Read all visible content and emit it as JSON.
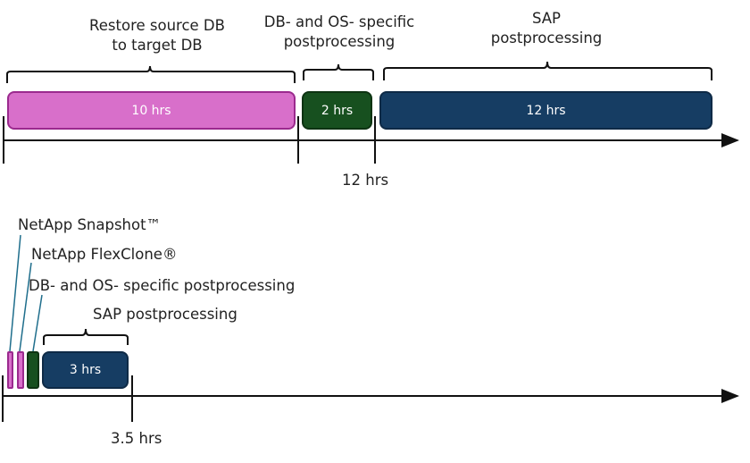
{
  "top": {
    "phases": [
      {
        "label": "Restore source DB\nto target DB",
        "duration": "10 hrs",
        "color": "#d86fca"
      },
      {
        "label": "DB- and OS- specific\npostprocessing",
        "duration": "2 hrs",
        "color": "#17501f"
      },
      {
        "label": "SAP\npostprocessing",
        "duration": "12 hrs",
        "color": "#163d63"
      }
    ],
    "marker": "12 hrs"
  },
  "bottom": {
    "labels": {
      "snapshot": "NetApp Snapshot™",
      "flexclone": "NetApp FlexClone®",
      "db_os": "DB- and OS- specific postprocessing",
      "sap": "SAP postprocessing"
    },
    "sap_duration": "3 hrs",
    "marker": "3.5 hrs"
  }
}
